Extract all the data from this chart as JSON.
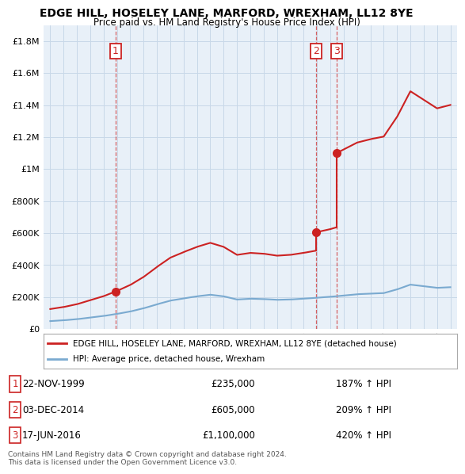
{
  "title": "EDGE HILL, HOSELEY LANE, MARFORD, WREXHAM, LL12 8YE",
  "subtitle": "Price paid vs. HM Land Registry's House Price Index (HPI)",
  "footnote": "Contains HM Land Registry data © Crown copyright and database right 2024.\nThis data is licensed under the Open Government Licence v3.0.",
  "legend_label_red": "EDGE HILL, HOSELEY LANE, MARFORD, WREXHAM, LL12 8YE (detached house)",
  "legend_label_blue": "HPI: Average price, detached house, Wrexham",
  "sales": [
    {
      "num": "1",
      "date": "22-NOV-1999",
      "price": "£235,000",
      "hpi_pct": "187% ↑ HPI",
      "year": 1999.9,
      "price_val": 235000
    },
    {
      "num": "2",
      "date": "03-DEC-2014",
      "price": "£605,000",
      "hpi_pct": "209% ↑ HPI",
      "year": 2014.92,
      "price_val": 605000
    },
    {
      "num": "3",
      "date": "17-JUN-2016",
      "price": "£1,100,000",
      "hpi_pct": "420% ↑ HPI",
      "year": 2016.46,
      "price_val": 1100000
    }
  ],
  "red_color": "#cc2222",
  "blue_color": "#7aaad0",
  "grid_color": "#c8d8e8",
  "plot_bg_color": "#e8f0f8",
  "background_color": "#ffffff",
  "ylim": [
    0,
    1900000
  ],
  "xlim": [
    1994.5,
    2025.5
  ],
  "hpi_years": [
    1995,
    1996,
    1997,
    1998,
    1999,
    2000,
    2001,
    2002,
    2003,
    2004,
    2005,
    2006,
    2007,
    2008,
    2009,
    2010,
    2011,
    2012,
    2013,
    2014,
    2015,
    2016,
    2017,
    2018,
    2019,
    2020,
    2021,
    2022,
    2023,
    2024,
    2025
  ],
  "hpi_values": [
    50000,
    55000,
    62000,
    72000,
    82000,
    95000,
    110000,
    130000,
    155000,
    178000,
    192000,
    205000,
    215000,
    205000,
    185000,
    190000,
    188000,
    183000,
    185000,
    190000,
    196000,
    202000,
    210000,
    218000,
    222000,
    225000,
    248000,
    278000,
    268000,
    258000,
    262000
  ],
  "sale1_year": 1999.9,
  "sale1_price": 235000,
  "sale2_year": 2014.92,
  "sale2_price": 605000,
  "sale3_year": 2016.46,
  "sale3_price": 1100000
}
